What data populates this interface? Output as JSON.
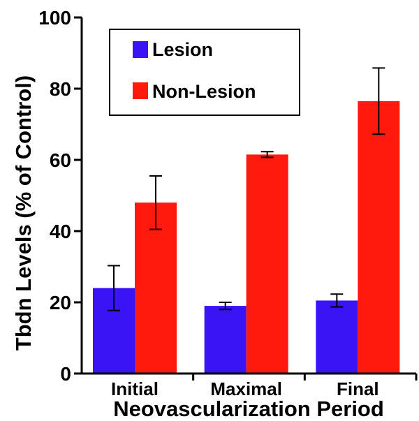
{
  "chart_data": {
    "type": "bar",
    "title": "",
    "xlabel": "Neovascularization Period",
    "ylabel": "Tbdn Levels (% of Control)",
    "categories": [
      "Initial",
      "Maximal",
      "Final"
    ],
    "series": [
      {
        "name": "Lesion",
        "color": "#3a14f5",
        "values": [
          24,
          19,
          20.5
        ],
        "error": [
          6.3,
          1,
          1.8
        ]
      },
      {
        "name": "Non-Lesion",
        "color": "#ff1a0d",
        "values": [
          48,
          61.5,
          76.5
        ],
        "error": [
          7.5,
          0.8,
          9.3
        ]
      }
    ],
    "ylim": [
      0,
      100
    ],
    "yticks": [
      "0",
      "20",
      "40",
      "60",
      "80",
      "100"
    ],
    "grid": false,
    "legend": "top-left"
  }
}
